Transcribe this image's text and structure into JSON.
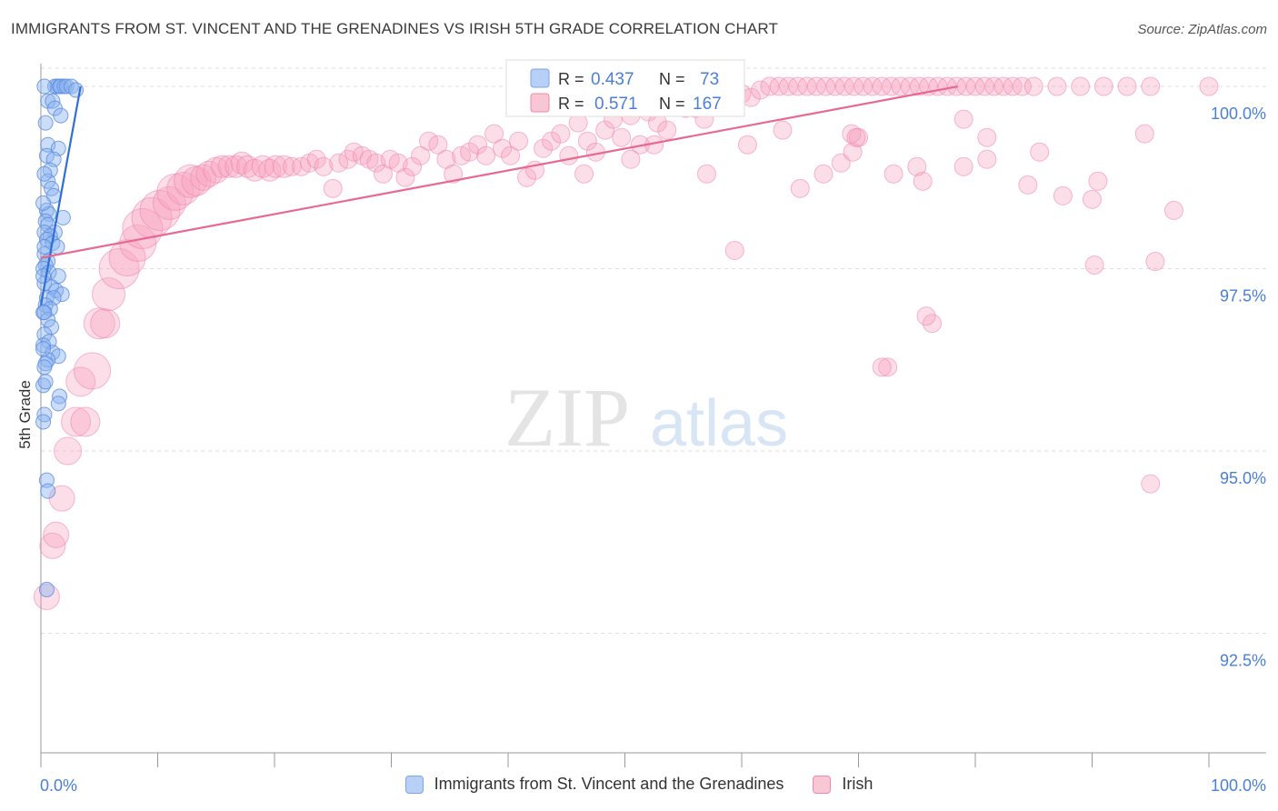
{
  "header": {
    "title": "IMMIGRANTS FROM ST. VINCENT AND THE GRENADINES VS IRISH 5TH GRADE CORRELATION CHART",
    "source": "Source: ZipAtlas.com"
  },
  "watermark": {
    "part1": "ZIP",
    "part2": "atlas"
  },
  "stats_box": {
    "rows": [
      {
        "r_label": "R = ",
        "r_value": "0.437",
        "n_label": "N = ",
        "n_value": "73",
        "color": "#6b9de8"
      },
      {
        "r_label": "R = ",
        "r_value": "0.571",
        "n_label": "N = ",
        "n_value": "167",
        "color": "#f07aa0"
      }
    ]
  },
  "legend": {
    "items": [
      {
        "label": "Immigrants from St. Vincent and the Grenadines",
        "fill": "#b8d0f5",
        "stroke": "#7aa6e8"
      },
      {
        "label": "Irish",
        "fill": "#f9c6d6",
        "stroke": "#f08aaa"
      }
    ]
  },
  "chart_data": {
    "type": "scatter",
    "title": "IMMIGRANTS FROM ST. VINCENT AND THE GRENADINES VS IRISH 5TH GRADE CORRELATION CHART",
    "ylabel": "5th Grade",
    "xlabel": "",
    "xlim": [
      0,
      100
    ],
    "ylim": [
      90.3,
      100.25
    ],
    "x_tick_labels": [
      "0.0%",
      "100.0%"
    ],
    "y_ticks": [
      {
        "value": 92.5,
        "label": "92.5%"
      },
      {
        "value": 95.0,
        "label": "95.0%"
      },
      {
        "value": 97.5,
        "label": "97.5%"
      },
      {
        "value": 100.0,
        "label": "100.0%"
      }
    ],
    "grid": "horizontal dashed",
    "series": [
      {
        "name": "Immigrants from St. Vincent and the Grenadines",
        "color": "#5a8fe0",
        "trend": {
          "x": [
            0.0,
            3.4
          ],
          "y": [
            97.0,
            100.0
          ],
          "color": "#2f6fd6"
        },
        "points": [
          [
            1.2,
            100.0
          ],
          [
            1.4,
            100.0
          ],
          [
            1.6,
            100.0
          ],
          [
            1.7,
            100.0
          ],
          [
            2.0,
            100.0
          ],
          [
            2.2,
            100.0
          ],
          [
            2.6,
            100.0
          ],
          [
            3.0,
            99.95
          ],
          [
            0.6,
            99.8
          ],
          [
            1.0,
            99.8
          ],
          [
            1.2,
            99.7
          ],
          [
            1.7,
            99.6
          ],
          [
            0.6,
            99.2
          ],
          [
            1.5,
            99.15
          ],
          [
            0.5,
            99.05
          ],
          [
            1.1,
            99.0
          ],
          [
            0.8,
            98.85
          ],
          [
            0.6,
            98.7
          ],
          [
            0.9,
            98.6
          ],
          [
            1.1,
            98.5
          ],
          [
            0.5,
            98.3
          ],
          [
            0.7,
            98.25
          ],
          [
            1.9,
            98.2
          ],
          [
            0.4,
            98.15
          ],
          [
            0.6,
            98.1
          ],
          [
            1.2,
            98.0
          ],
          [
            0.3,
            98.0
          ],
          [
            0.8,
            97.95
          ],
          [
            0.5,
            97.9
          ],
          [
            1.0,
            97.85
          ],
          [
            1.4,
            97.8
          ],
          [
            0.3,
            97.7
          ],
          [
            0.6,
            97.6
          ],
          [
            0.4,
            97.55
          ],
          [
            0.2,
            97.5
          ],
          [
            0.7,
            97.45
          ],
          [
            1.5,
            97.4
          ],
          [
            0.3,
            97.3
          ],
          [
            0.9,
            97.25
          ],
          [
            1.3,
            97.2
          ],
          [
            1.8,
            97.15
          ],
          [
            0.5,
            97.1
          ],
          [
            1.1,
            97.1
          ],
          [
            0.4,
            97.0
          ],
          [
            0.8,
            96.95
          ],
          [
            0.2,
            96.9
          ],
          [
            0.6,
            96.8
          ],
          [
            0.9,
            96.7
          ],
          [
            0.3,
            96.6
          ],
          [
            0.7,
            96.5
          ],
          [
            0.2,
            96.45
          ],
          [
            1.0,
            96.35
          ],
          [
            1.5,
            96.3
          ],
          [
            0.6,
            96.25
          ],
          [
            0.4,
            96.2
          ],
          [
            0.3,
            96.15
          ],
          [
            0.2,
            95.9
          ],
          [
            1.6,
            95.75
          ],
          [
            1.5,
            95.65
          ],
          [
            0.3,
            95.5
          ],
          [
            0.5,
            94.6
          ],
          [
            0.6,
            94.45
          ],
          [
            0.5,
            93.1
          ],
          [
            0.3,
            100.0
          ],
          [
            0.4,
            99.5
          ],
          [
            0.3,
            98.8
          ],
          [
            0.2,
            98.4
          ],
          [
            0.3,
            97.8
          ],
          [
            0.2,
            97.4
          ],
          [
            0.3,
            96.9
          ],
          [
            0.2,
            96.4
          ],
          [
            0.4,
            95.95
          ],
          [
            0.2,
            95.4
          ]
        ]
      },
      {
        "name": "Irish",
        "color": "#f07aa0",
        "trend": {
          "x": [
            0.0,
            78.5
          ],
          "y": [
            97.65,
            100.0
          ],
          "color": "#e8698f"
        },
        "points": [
          [
            0.5,
            93.0,
            14
          ],
          [
            1.0,
            93.7,
            14
          ],
          [
            1.3,
            93.85,
            14
          ],
          [
            1.8,
            94.35,
            14
          ],
          [
            2.3,
            95.0,
            15
          ],
          [
            3.0,
            95.4,
            16
          ],
          [
            3.8,
            95.4,
            16
          ],
          [
            3.4,
            95.95,
            16
          ],
          [
            4.4,
            96.1,
            20
          ],
          [
            5.0,
            96.75,
            17
          ],
          [
            5.5,
            96.75,
            16
          ],
          [
            5.8,
            97.15,
            18
          ],
          [
            6.7,
            97.5,
            22
          ],
          [
            7.4,
            97.65,
            20
          ],
          [
            8.3,
            97.85,
            20
          ],
          [
            8.7,
            98.05,
            22
          ],
          [
            9.5,
            98.2,
            22
          ],
          [
            10.2,
            98.3,
            22
          ],
          [
            11.0,
            98.4,
            18
          ],
          [
            11.5,
            98.55,
            20
          ],
          [
            12.2,
            98.6,
            18
          ],
          [
            12.8,
            98.7,
            18
          ],
          [
            13.3,
            98.7,
            16
          ],
          [
            13.9,
            98.75,
            14
          ],
          [
            14.4,
            98.8,
            14
          ],
          [
            15.0,
            98.85,
            14
          ],
          [
            15.5,
            98.9,
            12
          ],
          [
            16.1,
            98.9,
            12
          ],
          [
            16.7,
            98.9,
            12
          ],
          [
            17.2,
            98.95,
            12
          ],
          [
            17.7,
            98.9,
            12
          ],
          [
            18.3,
            98.85,
            12
          ],
          [
            19.0,
            98.9,
            12
          ],
          [
            19.6,
            98.85,
            12
          ],
          [
            20.1,
            98.9,
            12
          ],
          [
            20.8,
            98.9,
            12
          ],
          [
            21.5,
            98.9,
            10
          ],
          [
            22.3,
            98.9,
            10
          ],
          [
            23.0,
            98.95,
            10
          ],
          [
            23.6,
            99.0,
            10
          ],
          [
            24.2,
            98.9,
            10
          ],
          [
            25.0,
            98.6,
            10
          ],
          [
            25.5,
            98.95,
            10
          ],
          [
            26.3,
            99.0,
            10
          ],
          [
            26.8,
            99.1,
            10
          ],
          [
            27.5,
            99.05,
            10
          ],
          [
            28.1,
            99.0,
            10
          ],
          [
            28.7,
            98.95,
            10
          ],
          [
            29.3,
            98.8,
            10
          ],
          [
            29.9,
            99.0,
            10
          ],
          [
            30.6,
            98.95,
            10
          ],
          [
            31.2,
            98.75,
            10
          ],
          [
            31.8,
            98.9,
            10
          ],
          [
            32.5,
            99.05,
            10
          ],
          [
            33.2,
            99.25,
            10
          ],
          [
            34.0,
            99.2,
            10
          ],
          [
            34.7,
            99.0,
            10
          ],
          [
            35.3,
            98.8,
            10
          ],
          [
            36.0,
            99.05,
            10
          ],
          [
            36.7,
            99.1,
            10
          ],
          [
            37.4,
            99.2,
            10
          ],
          [
            38.1,
            99.05,
            10
          ],
          [
            38.8,
            99.35,
            10
          ],
          [
            39.5,
            99.15,
            10
          ],
          [
            40.2,
            99.05,
            10
          ],
          [
            40.9,
            99.25,
            10
          ],
          [
            41.6,
            98.75,
            10
          ],
          [
            42.3,
            98.85,
            10
          ],
          [
            43.0,
            99.15,
            10
          ],
          [
            43.7,
            99.25,
            10
          ],
          [
            44.5,
            99.35,
            10
          ],
          [
            45.2,
            99.05,
            10
          ],
          [
            46.0,
            99.5,
            10
          ],
          [
            46.8,
            99.25,
            10
          ],
          [
            47.5,
            99.1,
            10
          ],
          [
            48.3,
            99.4,
            10
          ],
          [
            49.0,
            99.55,
            10
          ],
          [
            49.7,
            99.3,
            10
          ],
          [
            50.5,
            99.6,
            10
          ],
          [
            51.3,
            99.2,
            10
          ],
          [
            52.0,
            99.65,
            10
          ],
          [
            52.8,
            99.5,
            10
          ],
          [
            53.6,
            99.4,
            10
          ],
          [
            54.4,
            99.75,
            10
          ],
          [
            55.2,
            99.7,
            10
          ],
          [
            56.0,
            99.7,
            10
          ],
          [
            56.8,
            99.55,
            10
          ],
          [
            57.6,
            99.8,
            10
          ],
          [
            58.4,
            99.85,
            10
          ],
          [
            59.2,
            99.75,
            10
          ],
          [
            60.0,
            99.9,
            10
          ],
          [
            60.8,
            99.85,
            10
          ],
          [
            61.6,
            99.95,
            10
          ],
          [
            62.4,
            100.0,
            10
          ],
          [
            63.2,
            100.0,
            10
          ],
          [
            64.0,
            100.0,
            10
          ],
          [
            64.8,
            100.0,
            10
          ],
          [
            65.6,
            100.0,
            10
          ],
          [
            66.4,
            100.0,
            10
          ],
          [
            67.2,
            100.0,
            10
          ],
          [
            68.0,
            100.0,
            10
          ],
          [
            68.8,
            100.0,
            10
          ],
          [
            69.6,
            100.0,
            10
          ],
          [
            70.4,
            100.0,
            10
          ],
          [
            71.2,
            100.0,
            10
          ],
          [
            72.0,
            100.0,
            10
          ],
          [
            72.8,
            100.0,
            10
          ],
          [
            73.6,
            100.0,
            10
          ],
          [
            74.4,
            100.0,
            10
          ],
          [
            75.2,
            100.0,
            10
          ],
          [
            76.0,
            100.0,
            10
          ],
          [
            76.8,
            100.0,
            10
          ],
          [
            77.6,
            100.0,
            10
          ],
          [
            78.4,
            100.0,
            10
          ],
          [
            79.2,
            100.0,
            10
          ],
          [
            80.0,
            100.0,
            10
          ],
          [
            80.8,
            100.0,
            10
          ],
          [
            81.6,
            100.0,
            10
          ],
          [
            82.4,
            100.0,
            10
          ],
          [
            83.2,
            100.0,
            10
          ],
          [
            84.0,
            100.0,
            10
          ],
          [
            85.0,
            100.0,
            10
          ],
          [
            87.0,
            100.0,
            10
          ],
          [
            89.0,
            100.0,
            10
          ],
          [
            91.0,
            100.0,
            10
          ],
          [
            93.0,
            100.0,
            10
          ],
          [
            95.0,
            100.0,
            10
          ],
          [
            100.0,
            100.0,
            10
          ],
          [
            67.0,
            98.8,
            10
          ],
          [
            68.5,
            98.95,
            10
          ],
          [
            73.0,
            98.8,
            10
          ],
          [
            75.5,
            98.7,
            10
          ],
          [
            84.5,
            98.65,
            10
          ],
          [
            87.5,
            98.5,
            10
          ],
          [
            90.0,
            98.45,
            10
          ],
          [
            97.0,
            98.3,
            10
          ],
          [
            52.5,
            99.2,
            10
          ],
          [
            57.0,
            98.8,
            10
          ],
          [
            63.5,
            99.4,
            10
          ],
          [
            69.5,
            99.1,
            10
          ],
          [
            70.0,
            99.3,
            10
          ],
          [
            79.0,
            99.55,
            10
          ],
          [
            85.5,
            99.1,
            10
          ],
          [
            94.5,
            99.35,
            10
          ],
          [
            69.4,
            99.35,
            10
          ],
          [
            46.5,
            98.8,
            10
          ],
          [
            50.5,
            99.0,
            10
          ],
          [
            60.5,
            99.2,
            10
          ],
          [
            65.0,
            98.6,
            10
          ],
          [
            75.0,
            98.9,
            10
          ],
          [
            81.0,
            99.0,
            10
          ],
          [
            79.0,
            98.9,
            10
          ],
          [
            59.4,
            97.75,
            10
          ],
          [
            72.5,
            96.15,
            10
          ],
          [
            76.3,
            96.75,
            10
          ],
          [
            75.8,
            96.85,
            10
          ],
          [
            72.0,
            96.15,
            10
          ],
          [
            90.2,
            97.55,
            10
          ],
          [
            95.0,
            94.55,
            10
          ],
          [
            95.4,
            97.6,
            10
          ],
          [
            69.8,
            99.3,
            10
          ],
          [
            90.5,
            98.7,
            10
          ],
          [
            81.0,
            99.3,
            10
          ]
        ]
      }
    ]
  }
}
